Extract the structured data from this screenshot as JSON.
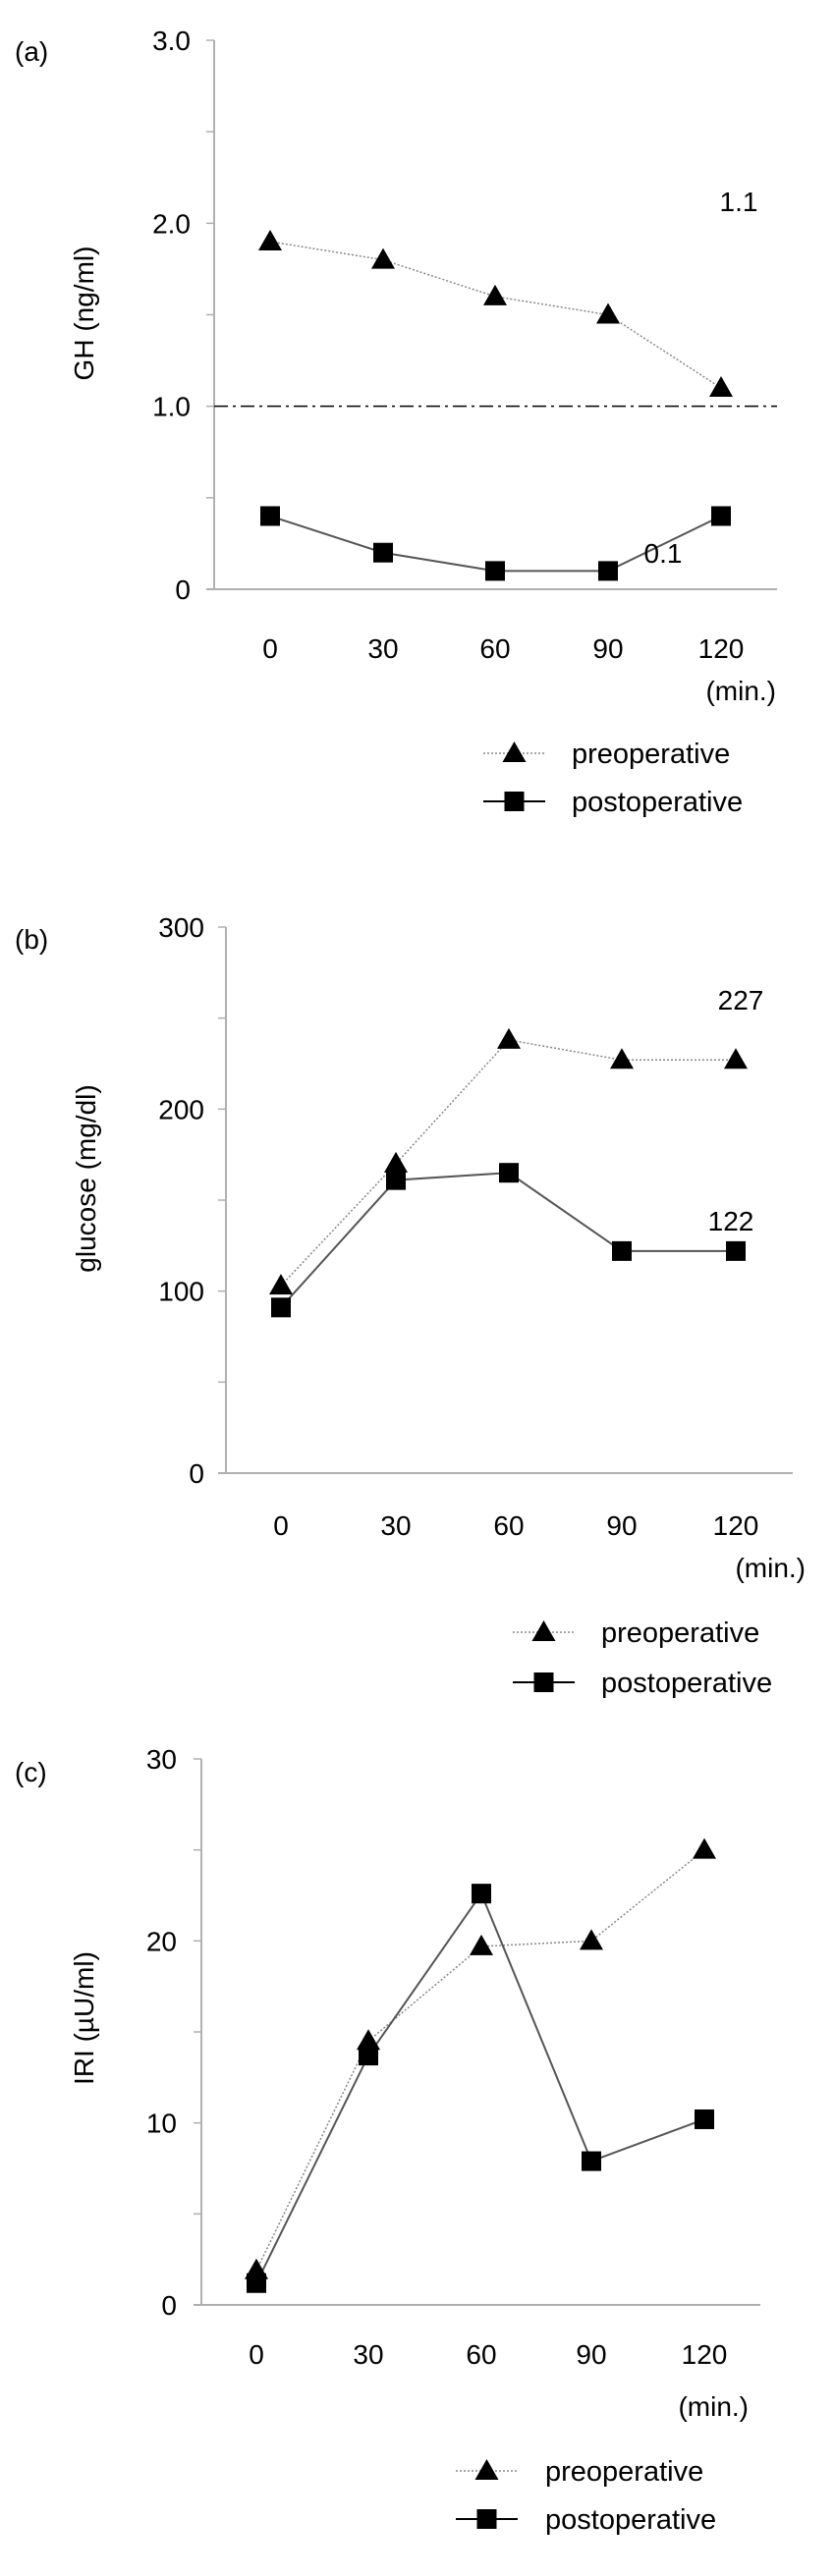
{
  "colors": {
    "axis": "#b0b0b0",
    "pre_line": "#888888",
    "post_line": "#555555",
    "marker": "#000000"
  },
  "legend": {
    "pre": "preoperative",
    "post": "postoperative"
  },
  "chart_data": [
    {
      "type": "line",
      "panel_label": "(a)",
      "ylabel": "GH (ng/ml)",
      "xlabel_unit": "(min.)",
      "x": [
        0,
        30,
        60,
        90,
        120
      ],
      "x_tick_labels": [
        "0",
        "30",
        "60",
        "90",
        "120"
      ],
      "ylim": [
        0,
        3
      ],
      "y_ticks": [
        0,
        1,
        2,
        3
      ],
      "y_tick_labels": [
        "0",
        "1.0",
        "2.0",
        "3.0"
      ],
      "reference_line": 1.0,
      "series": [
        {
          "name": "preoperative",
          "marker": "triangle",
          "line": "dotted",
          "values": [
            1.9,
            1.8,
            1.6,
            1.5,
            1.1
          ]
        },
        {
          "name": "postoperative",
          "marker": "square",
          "line": "solid",
          "values": [
            0.4,
            0.2,
            0.1,
            0.1,
            0.4
          ]
        }
      ],
      "annotations": [
        "1.1",
        "0.1"
      ]
    },
    {
      "type": "line",
      "panel_label": "(b)",
      "ylabel": "glucose (mg/dl)",
      "xlabel_unit": "(min.)",
      "x": [
        0,
        30,
        60,
        90,
        120
      ],
      "x_tick_labels": [
        "0",
        "30",
        "60",
        "90",
        "120"
      ],
      "ylim": [
        0,
        300
      ],
      "y_ticks": [
        0,
        100,
        200,
        300
      ],
      "y_tick_labels": [
        "0",
        "100",
        "200",
        "300"
      ],
      "series": [
        {
          "name": "preoperative",
          "marker": "triangle",
          "line": "dotted",
          "values": [
            103,
            170,
            238,
            227,
            227
          ]
        },
        {
          "name": "postoperative",
          "marker": "square",
          "line": "solid",
          "values": [
            91,
            161,
            165,
            122,
            122
          ]
        }
      ],
      "annotations": [
        "227",
        "122"
      ]
    },
    {
      "type": "line",
      "panel_label": "(c)",
      "ylabel": "IRI (µU/ml)",
      "xlabel_unit": "(min.)",
      "x": [
        0,
        30,
        60,
        90,
        120
      ],
      "x_tick_labels": [
        "0",
        "30",
        "60",
        "90",
        "120"
      ],
      "ylim": [
        0,
        30
      ],
      "y_ticks": [
        0,
        10,
        20,
        30
      ],
      "y_tick_labels": [
        "0",
        "10",
        "20",
        "30"
      ],
      "series": [
        {
          "name": "preoperative",
          "marker": "triangle",
          "line": "dotted",
          "values": [
            1.9,
            14.5,
            19.7,
            20.0,
            25.0
          ]
        },
        {
          "name": "postoperative",
          "marker": "square",
          "line": "solid",
          "values": [
            1.2,
            13.7,
            22.6,
            7.9,
            10.2
          ]
        }
      ],
      "annotations": []
    }
  ]
}
